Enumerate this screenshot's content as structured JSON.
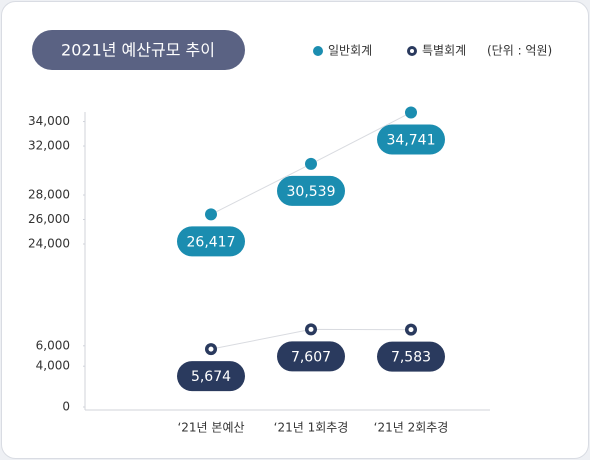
{
  "chart_data": {
    "type": "line",
    "title": "2021년 예산규모 추이",
    "unit_note": "(단위 : 억원)",
    "categories": [
      "‘21년 본예산",
      "‘21년 1회추경",
      "‘21년 2회추경"
    ],
    "axis_segments": [
      {
        "ylim": [
          24000,
          35000
        ],
        "yticks": [
          {
            "value": 24000,
            "label": "24,000"
          },
          {
            "value": 26000,
            "label": "26,000"
          },
          {
            "value": 28000,
            "label": "28,000"
          },
          {
            "value": 32000,
            "label": "32,000"
          },
          {
            "value": 34000,
            "label": "34,000"
          }
        ]
      },
      {
        "ylim": [
          0,
          8000
        ],
        "yticks": [
          0,
          {
            "value": 4000,
            "label": "4,000"
          },
          {
            "value": 6000,
            "label": "6,000"
          }
        ]
      }
    ],
    "series": [
      {
        "name": "일반회계",
        "color": "#1b8db0",
        "marker": "dot",
        "axis_segment": 0,
        "values": [
          26417,
          30539,
          34741
        ],
        "value_labels": [
          "26,417",
          "30,539",
          "34,741"
        ]
      },
      {
        "name": "특별회계",
        "color": "#2a3a5e",
        "marker": "ring",
        "axis_segment": 1,
        "values": [
          5674,
          7607,
          7583
        ],
        "value_labels": [
          "5,674",
          "7,607",
          "7,583"
        ]
      }
    ]
  }
}
